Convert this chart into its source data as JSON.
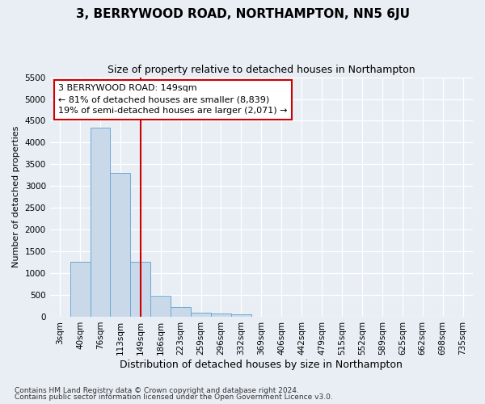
{
  "title": "3, BERRYWOOD ROAD, NORTHAMPTON, NN5 6JU",
  "subtitle": "Size of property relative to detached houses in Northampton",
  "xlabel": "Distribution of detached houses by size in Northampton",
  "ylabel": "Number of detached properties",
  "bin_labels": [
    "3sqm",
    "40sqm",
    "76sqm",
    "113sqm",
    "149sqm",
    "186sqm",
    "223sqm",
    "259sqm",
    "296sqm",
    "332sqm",
    "369sqm",
    "406sqm",
    "442sqm",
    "479sqm",
    "515sqm",
    "552sqm",
    "589sqm",
    "625sqm",
    "662sqm",
    "698sqm",
    "735sqm"
  ],
  "bar_heights": [
    0,
    1270,
    4350,
    3300,
    1270,
    480,
    230,
    100,
    75,
    50,
    0,
    0,
    0,
    0,
    0,
    0,
    0,
    0,
    0,
    0,
    0
  ],
  "bar_color": "#c9d9ea",
  "bar_edge_color": "#6aaad4",
  "vline_x_index": 4,
  "vline_color": "#cc0000",
  "ylim": [
    0,
    5500
  ],
  "yticks": [
    0,
    500,
    1000,
    1500,
    2000,
    2500,
    3000,
    3500,
    4000,
    4500,
    5000,
    5500
  ],
  "annot_line1": "3 BERRYWOOD ROAD: 149sqm",
  "annot_line2": "← 81% of detached houses are smaller (8,839)",
  "annot_line3": "19% of semi-detached houses are larger (2,071) →",
  "annotation_box_color": "#ffffff",
  "annotation_box_edge": "#cc0000",
  "footer_line1": "Contains HM Land Registry data © Crown copyright and database right 2024.",
  "footer_line2": "Contains public sector information licensed under the Open Government Licence v3.0.",
  "background_color": "#e8eef4",
  "grid_color": "#ffffff",
  "title_fontsize": 11,
  "subtitle_fontsize": 9,
  "tick_fontsize": 7.5,
  "ylabel_fontsize": 8,
  "xlabel_fontsize": 9,
  "footer_fontsize": 6.5
}
